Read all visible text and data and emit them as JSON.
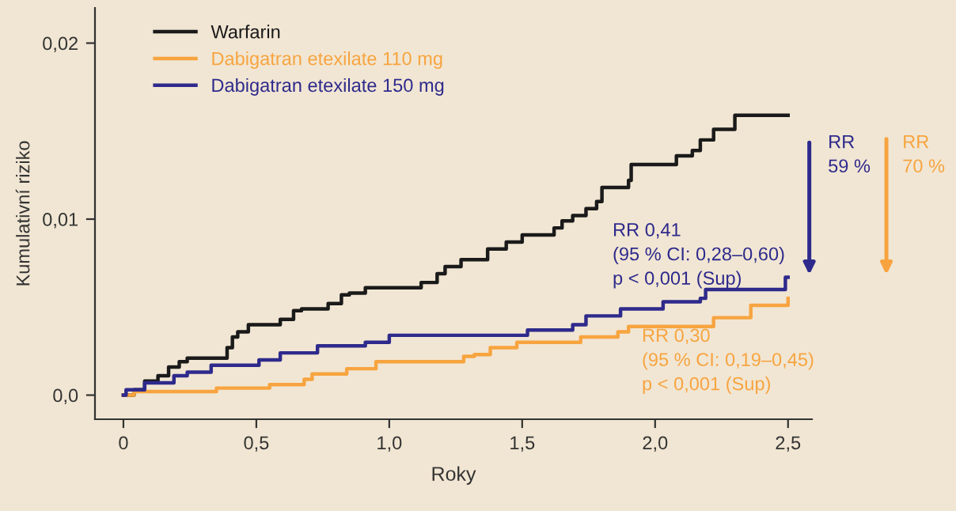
{
  "chart_data": {
    "type": "step",
    "xlabel": "Roky",
    "ylabel": "Kumulativní riziko",
    "series": [
      {
        "name": "Warfarin",
        "color": "#1a1a1a",
        "x": [
          0,
          0.04,
          0.08,
          0.13,
          0.17,
          0.21,
          0.24,
          0.39,
          0.41,
          0.43,
          0.47,
          0.59,
          0.64,
          0.67,
          0.77,
          0.82,
          0.85,
          0.91,
          1.12,
          1.18,
          1.21,
          1.27,
          1.37,
          1.44,
          1.5,
          1.62,
          1.65,
          1.69,
          1.74,
          1.78,
          1.8,
          1.9,
          1.91,
          2.08,
          2.14,
          2.17,
          2.22,
          2.3,
          2.5
        ],
        "values": [
          0,
          0.0003,
          0.0008,
          0.0011,
          0.0016,
          0.0019,
          0.0021,
          0.0027,
          0.0033,
          0.0036,
          0.004,
          0.0043,
          0.0048,
          0.0049,
          0.0052,
          0.0057,
          0.0058,
          0.0061,
          0.0064,
          0.0069,
          0.0073,
          0.0077,
          0.0083,
          0.0087,
          0.0091,
          0.0095,
          0.0099,
          0.0102,
          0.0106,
          0.011,
          0.0118,
          0.0122,
          0.0131,
          0.0136,
          0.0139,
          0.0145,
          0.0151,
          0.0159,
          0.0159
        ]
      },
      {
        "name": "Dabigatran etexilate 110 mg",
        "color": "#f7a440",
        "x": [
          0,
          0.04,
          0.35,
          0.55,
          0.68,
          0.71,
          0.84,
          0.95,
          1.28,
          1.32,
          1.38,
          1.48,
          1.72,
          1.86,
          1.9,
          2.22,
          2.36,
          2.5
        ],
        "values": [
          0,
          0.0002,
          0.0004,
          0.0006,
          0.0009,
          0.0012,
          0.0015,
          0.0019,
          0.0022,
          0.0023,
          0.0027,
          0.003,
          0.0033,
          0.0036,
          0.0039,
          0.0044,
          0.0051,
          0.0055
        ]
      },
      {
        "name": "Dabigatran etexilate 150 mg",
        "color": "#2e2a8c",
        "x": [
          0,
          0.01,
          0.08,
          0.19,
          0.24,
          0.33,
          0.51,
          0.59,
          0.73,
          0.91,
          1.0,
          1.52,
          1.69,
          1.74,
          1.87,
          2.03,
          2.17,
          2.19,
          2.49,
          2.5
        ],
        "values": [
          0,
          0.0003,
          0.0007,
          0.0011,
          0.0013,
          0.0017,
          0.002,
          0.0024,
          0.0028,
          0.003,
          0.0034,
          0.0037,
          0.004,
          0.0045,
          0.0049,
          0.0053,
          0.0055,
          0.006,
          0.0067,
          0.0067
        ]
      }
    ],
    "annotations": [
      "RR 0,41\n(95 % CI: 0,28–0,60)\np < 0,001 (Sup)",
      "RR 0,30\n(95 % CI: 0,19–0,45)\np < 0,001 (Sup)",
      "RR\n59 %",
      "RR\n70 %"
    ],
    "xlim": [
      -0.107,
      2.59
    ],
    "ylim": [
      -0.00137,
      0.022
    ],
    "xticks": [
      {
        "value": 0,
        "label": "0"
      },
      {
        "value": 0.5,
        "label": "0,5"
      },
      {
        "value": 1.0,
        "label": "1,0"
      },
      {
        "value": 1.5,
        "label": "1,5"
      },
      {
        "value": 2.0,
        "label": "2,0"
      },
      {
        "value": 2.5,
        "label": "2,5"
      }
    ],
    "yticks": [
      {
        "value": 0,
        "label": "0,0"
      },
      {
        "value": 0.01,
        "label": "0,01"
      },
      {
        "value": 0.02,
        "label": "0,02"
      }
    ],
    "grid": false,
    "legend": "top left"
  }
}
